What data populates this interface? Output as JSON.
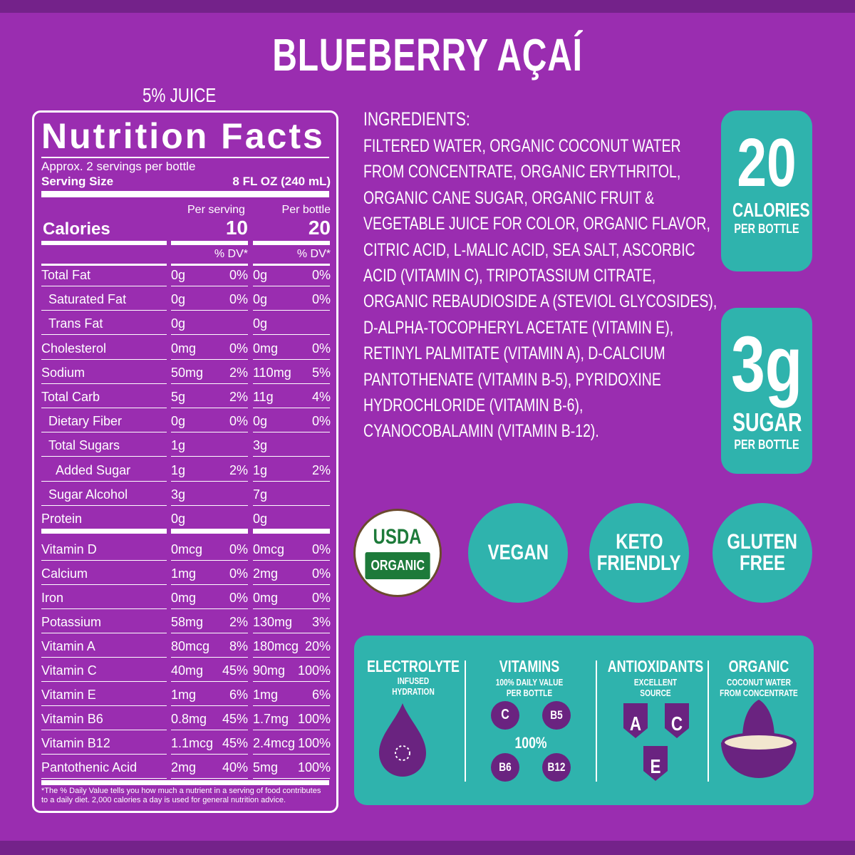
{
  "title": "BLUEBERRY AÇAÍ",
  "juice": "5% JUICE",
  "nutrition": {
    "heading": "Nutrition Facts",
    "servings": "Approx. 2 servings per bottle",
    "serving_size_label": "Serving Size",
    "serving_size": "8 FL OZ (240 mL)",
    "per_serving": "Per serving",
    "per_bottle": "Per bottle",
    "calories_label": "Calories",
    "calories_serving": "10",
    "calories_bottle": "20",
    "dv_header": "% DV*",
    "rows": [
      [
        "Total Fat",
        "0g",
        "0%",
        "0g",
        "0%"
      ],
      [
        "Saturated Fat",
        "0g",
        "0%",
        "0g",
        "0%"
      ],
      [
        "Trans Fat",
        "0g",
        null,
        "0g",
        null
      ],
      [
        "Cholesterol",
        "0mg",
        "0%",
        "0mg",
        "0%"
      ],
      [
        "Sodium",
        "50mg",
        "2%",
        "110mg",
        "5%"
      ],
      [
        "Total Carb",
        "5g",
        "2%",
        "11g",
        "4%"
      ],
      [
        "Dietary Fiber",
        "0g",
        "0%",
        "0g",
        "0%"
      ],
      [
        "Total Sugars",
        "1g",
        null,
        "3g",
        null
      ],
      [
        "Added Sugar",
        "1g",
        "2%",
        "1g",
        "2%"
      ],
      [
        "Sugar Alcohol",
        "3g",
        null,
        "7g",
        null
      ],
      [
        "Protein",
        "0g",
        null,
        "0g",
        null
      ]
    ],
    "vitamins": [
      [
        "Vitamin D",
        "0mcg",
        "0%",
        "0mcg",
        "0%"
      ],
      [
        "Calcium",
        "1mg",
        "0%",
        "2mg",
        "0%"
      ],
      [
        "Iron",
        "0mg",
        "0%",
        "0mg",
        "0%"
      ],
      [
        "Potassium",
        "58mg",
        "2%",
        "130mg",
        "3%"
      ],
      [
        "Vitamin A",
        "80mcg",
        "8%",
        "180mcg",
        "20%"
      ],
      [
        "Vitamin C",
        "40mg",
        "45%",
        "90mg",
        "100%"
      ],
      [
        "Vitamin E",
        "1mg",
        "6%",
        "1mg",
        "6%"
      ],
      [
        "Vitamin B6",
        "0.8mg",
        "45%",
        "1.7mg",
        "100%"
      ],
      [
        "Vitamin B12",
        "1.1mcg",
        "45%",
        "2.4mcg",
        "100%"
      ],
      [
        "Pantothenic Acid",
        "2mg",
        "40%",
        "5mg",
        "100%"
      ]
    ],
    "footnote": "*The % Daily Value tells you how much a nutrient in a serving of food contributes to a daily diet. 2,000 calories a day is used for general nutrition advice."
  },
  "ingredients": {
    "heading": "INGREDIENTS:",
    "lines": [
      "FILTERED WATER, ORGANIC COCONUT WATER",
      "FROM CONCENTRATE, ORGANIC ERYTHRITOL,",
      "ORGANIC CANE SUGAR, ORGANIC FRUIT &",
      "VEGETABLE JUICE FOR COLOR, ORGANIC FLAVOR,",
      "CITRIC ACID, L-MALIC ACID, SEA SALT, ASCORBIC",
      "ACID (VITAMIN C), TRIPOTASSIUM CITRATE,",
      "ORGANIC REBAUDIOSIDE A (STEVIOL GLYCOSIDES),",
      "D-ALPHA-TOCOPHERYL ACETATE (VITAMIN E),",
      "RETINYL PALMITATE (VITAMIN A), D-CALCIUM",
      "PANTOTHENATE (VITAMIN B-5), PYRIDOXINE",
      "HYDROCHLORIDE (VITAMIN B-6),",
      "CYANOCOBALAMIN (VITAMIN B-12)."
    ]
  },
  "badges": [
    {
      "big": "20",
      "label": "CALORIES",
      "sub": "PER BOTTLE"
    },
    {
      "big": "3g",
      "label": "SUGAR",
      "sub": "PER BOTTLE"
    }
  ],
  "seals": {
    "usda": [
      "USDA",
      "ORGANIC"
    ],
    "vegan": [
      "VEGAN"
    ],
    "keto": [
      "KETO",
      "FRIENDLY"
    ],
    "gluten": [
      "GLUTEN",
      "FREE"
    ]
  },
  "features": {
    "electrolyte": {
      "title": "ELECTROLYTE",
      "sub": [
        "INFUSED",
        "HYDRATION"
      ]
    },
    "vitamins": {
      "title": "VITAMINS",
      "sub": [
        "100% DAILY VALUE",
        "PER BOTTLE"
      ],
      "icons": [
        "C",
        "B5",
        "100%",
        "B6",
        "B12"
      ]
    },
    "antioxidants": {
      "title": "ANTIOXIDANTS",
      "sub": [
        "EXCELLENT",
        "SOURCE"
      ],
      "icons": [
        "A",
        "C",
        "E"
      ]
    },
    "organic": {
      "title": "ORGANIC",
      "sub": [
        "COCONUT WATER",
        "FROM CONCENTRATE"
      ]
    }
  }
}
